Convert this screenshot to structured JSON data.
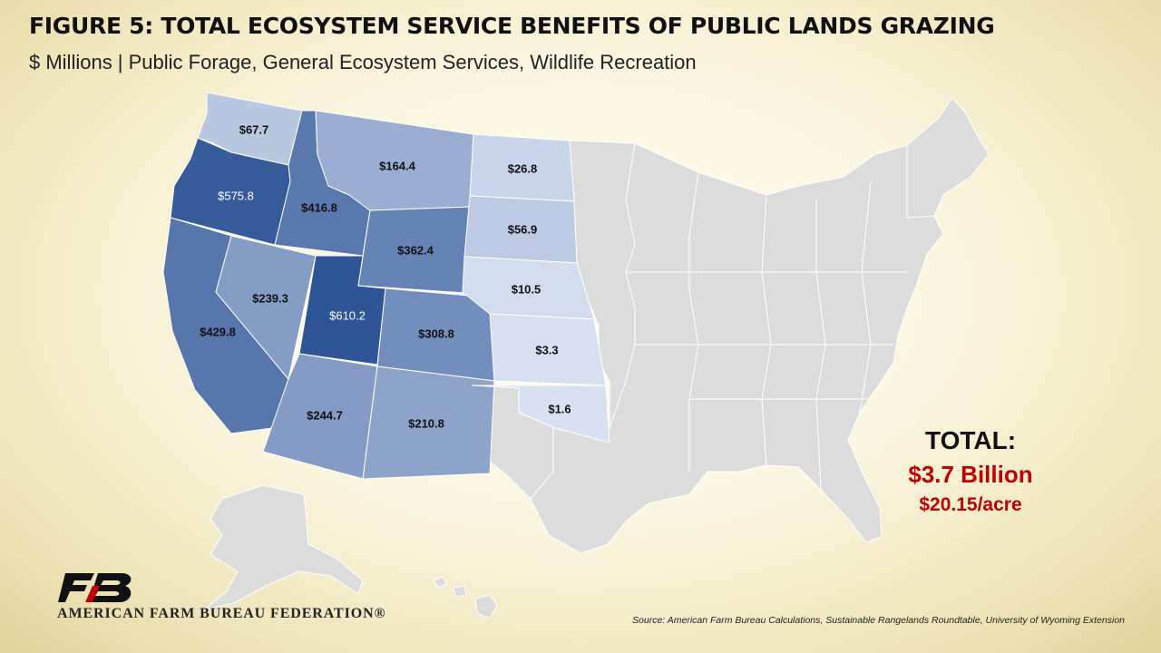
{
  "title": "FIGURE 5: TOTAL ECOSYSTEM SERVICE BENEFITS OF PUBLIC LANDS GRAZING",
  "subtitle": "$ Millions | Public Forage, General Ecosystem Services, Wildlife Recreation",
  "totals": {
    "label": "TOTAL:",
    "value": "$3.7 Billion",
    "per_acre": "$20.15/acre"
  },
  "org": {
    "name": "AMERICAN FARM BUREAU FEDERATION®"
  },
  "source": "Source: American Farm Bureau Calculations, Sustainable Rangelands Roundtable, University of Wyoming Extension",
  "colors": {
    "title": "#111111",
    "total_accent": "#c00000",
    "other_states": "#dcdcdc",
    "logo": "#111111"
  },
  "map_data": {
    "unit": "$ Millions",
    "states": [
      {
        "id": "WA",
        "label": "$67.7",
        "value": 67.7
      },
      {
        "id": "OR",
        "label": "$575.8",
        "value": 575.8
      },
      {
        "id": "CA",
        "label": "$429.8",
        "value": 429.8
      },
      {
        "id": "ID",
        "label": "$416.8",
        "value": 416.8
      },
      {
        "id": "NV",
        "label": "$239.3",
        "value": 239.3
      },
      {
        "id": "MT",
        "label": "$164.4",
        "value": 164.4
      },
      {
        "id": "WY",
        "label": "$362.4",
        "value": 362.4
      },
      {
        "id": "UT",
        "label": "$610.2",
        "value": 610.2
      },
      {
        "id": "CO",
        "label": "$308.8",
        "value": 308.8
      },
      {
        "id": "AZ",
        "label": "$244.7",
        "value": 244.7
      },
      {
        "id": "NM",
        "label": "$210.8",
        "value": 210.8
      },
      {
        "id": "ND",
        "label": "$26.8",
        "value": 26.8
      },
      {
        "id": "SD",
        "label": "$56.9",
        "value": 56.9
      },
      {
        "id": "NE",
        "label": "$10.5",
        "value": 10.5
      },
      {
        "id": "KS",
        "label": "$3.3",
        "value": 3.3
      },
      {
        "id": "OK",
        "label": "$1.6",
        "value": 1.6
      }
    ]
  }
}
